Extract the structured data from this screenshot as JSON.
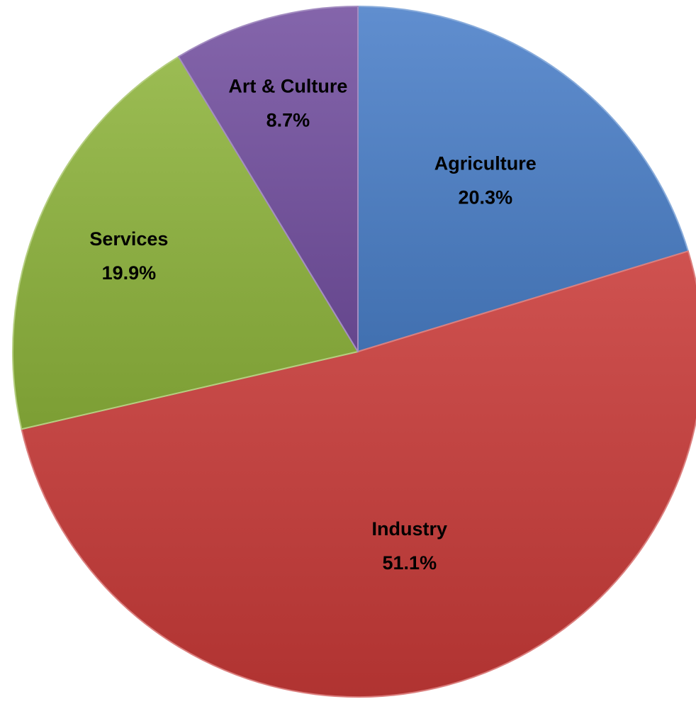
{
  "chart_data": {
    "type": "pie",
    "title": "",
    "categories": [
      "Agriculture",
      "Industry",
      "Services",
      "Art & Culture"
    ],
    "values": [
      20.3,
      51.1,
      19.9,
      8.7
    ],
    "value_labels": [
      "20.3%",
      "51.1%",
      "19.9%",
      "8.7%"
    ],
    "colors": [
      "#4a7fc8",
      "#c83a38",
      "#8db33b",
      "#7350a0"
    ],
    "start_angle": "12 o'clock",
    "direction": "clockwise",
    "legend": "none",
    "data_labels": "inside"
  }
}
